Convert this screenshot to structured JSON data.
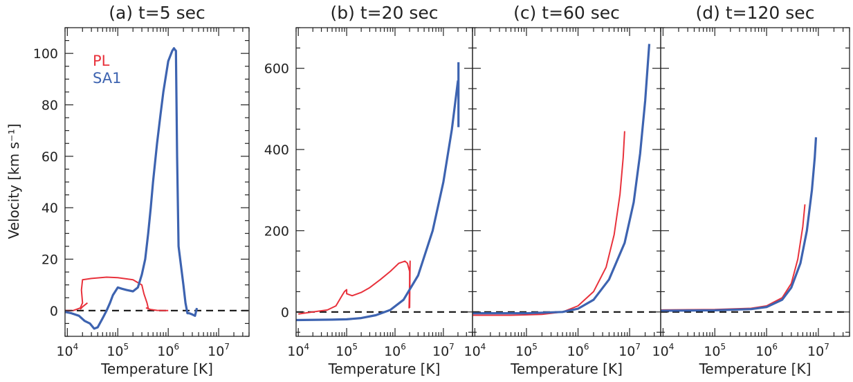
{
  "figure": {
    "ylabel": "Velocity [km s⁻¹]",
    "colors": {
      "PL": "#e8313b",
      "SA1": "#3d63b0",
      "zero_line": "#111111"
    }
  },
  "chart_data": [
    {
      "panel": "a",
      "type": "line",
      "title": "(a)  t=5 sec",
      "xlabel": "Temperature [K]",
      "ylabel": "Velocity [km s⁻¹]",
      "xscale": "log",
      "xlim": [
        9000,
        40000000
      ],
      "ylim": [
        -10,
        110
      ],
      "x_ticks": [
        10000,
        100000,
        1000000,
        10000000
      ],
      "x_tick_labels": [
        [
          "10",
          "4"
        ],
        [
          "10",
          "5"
        ],
        [
          "10",
          "6"
        ],
        [
          "10",
          "7"
        ]
      ],
      "y_ticks": [
        0,
        20,
        40,
        60,
        80,
        100
      ],
      "y_tick_labels": [
        "0",
        "20",
        "40",
        "60",
        "80",
        "100"
      ],
      "legend": {
        "position": "top-left",
        "entries": [
          "PL",
          "SA1"
        ]
      },
      "zero_line": true,
      "series": [
        {
          "name": "PL",
          "x": [
            9000,
            13000,
            18000,
            20000,
            19000,
            20000,
            30000,
            60000,
            100000,
            200000,
            300000,
            330000,
            380000,
            400000,
            370000,
            450000,
            600000,
            800000,
            1000000
          ],
          "y": [
            0,
            0,
            1,
            3,
            8,
            12,
            12.5,
            13,
            12.8,
            12,
            10,
            6.5,
            3,
            1,
            1,
            0.4,
            0.1,
            0,
            0
          ]
        },
        {
          "name": "PL",
          "x": [
            18000,
            20000,
            25000
          ],
          "y": [
            0.5,
            1.5,
            3
          ]
        },
        {
          "name": "SA1",
          "x": [
            9000,
            12000,
            17000,
            22000,
            28000,
            34000,
            40000,
            50000,
            60000,
            70000,
            80000,
            100000,
            120000,
            150000,
            200000,
            250000,
            300000,
            350000,
            400000,
            450000,
            500000,
            600000,
            700000,
            800000,
            1000000,
            1200000,
            1300000,
            1350000,
            1420000,
            1500000,
            1600000,
            2000000,
            2200000,
            2400000,
            2600000,
            3000000,
            3400000,
            3700000
          ],
          "y": [
            -0.5,
            -1,
            -2,
            -4,
            -5,
            -7,
            -6.5,
            -3,
            0,
            3,
            6,
            9,
            8.5,
            8,
            7.5,
            9,
            14,
            20,
            30,
            40,
            50,
            65,
            76,
            85,
            97,
            101,
            102,
            101.5,
            101,
            60,
            25,
            10,
            3,
            -1,
            -1,
            -1.5,
            -2,
            1
          ]
        }
      ]
    },
    {
      "panel": "b",
      "type": "line",
      "title": "(b)  t=20 sec",
      "xlabel": "Temperature [K]",
      "xscale": "log",
      "xlim": [
        9000,
        40000000
      ],
      "ylim": [
        -60,
        700
      ],
      "x_ticks": [
        10000,
        100000,
        1000000,
        10000000
      ],
      "x_tick_labels": [
        [
          "10",
          "4"
        ],
        [
          "10",
          "5"
        ],
        [
          "10",
          "6"
        ],
        [
          "10",
          "7"
        ]
      ],
      "y_ticks": [
        0,
        200,
        400,
        600
      ],
      "y_tick_labels": [
        "0",
        "200",
        "400",
        "600"
      ],
      "zero_line": true,
      "series": [
        {
          "name": "PL",
          "x": [
            10000,
            20000,
            40000,
            60000,
            80000,
            90000,
            100000,
            100000,
            130000,
            200000,
            300000,
            500000,
            800000,
            1200000,
            1600000,
            1800000,
            2000000,
            2000000,
            1950000,
            2050000,
            2000000
          ],
          "y": [
            -5,
            0,
            5,
            15,
            40,
            50,
            55,
            45,
            40,
            48,
            60,
            80,
            100,
            120,
            125,
            120,
            100,
            60,
            10,
            125,
            10
          ]
        },
        {
          "name": "SA1",
          "x": [
            9000,
            50000,
            100000,
            200000,
            400000,
            800000,
            1500000,
            3000000,
            6000000,
            10000000,
            15000000,
            20000000
          ],
          "y": [
            -20,
            -19,
            -18,
            -15,
            -8,
            5,
            30,
            90,
            200,
            320,
            450,
            570
          ]
        },
        {
          "name": "SA1",
          "x": [
            20500000,
            20500000
          ],
          "y": [
            455,
            615
          ]
        }
      ]
    },
    {
      "panel": "c",
      "type": "line",
      "title": "(c)  t=60 sec",
      "xlabel": "Temperature [K]",
      "xscale": "log",
      "xlim": [
        9000,
        40000000
      ],
      "ylim": [
        -60,
        700
      ],
      "x_ticks": [
        10000,
        100000,
        1000000,
        10000000
      ],
      "x_tick_labels": [
        [
          "10",
          "4"
        ],
        [
          "10",
          "5"
        ],
        [
          "10",
          "6"
        ],
        [
          "10",
          "7"
        ]
      ],
      "y_ticks": [],
      "y_tick_labels": [],
      "zero_line": true,
      "series": [
        {
          "name": "PL",
          "x": [
            9000,
            50000,
            200000,
            500000,
            1000000,
            2000000,
            3500000,
            5000000,
            6500000,
            7500000,
            8000000
          ],
          "y": [
            -8,
            -8,
            -6,
            0,
            15,
            50,
            110,
            190,
            290,
            380,
            445
          ]
        },
        {
          "name": "SA1",
          "x": [
            9000,
            100000,
            500000,
            1000000,
            2000000,
            4000000,
            8000000,
            12000000,
            16000000,
            20000000,
            24000000
          ],
          "y": [
            -3,
            -3,
            0,
            8,
            30,
            80,
            170,
            270,
            390,
            520,
            660
          ]
        }
      ]
    },
    {
      "panel": "d",
      "type": "line",
      "title": "(d)  t=120 sec",
      "xlabel": "Temperature [K]",
      "xscale": "log",
      "xlim": [
        9000,
        40000000
      ],
      "ylim": [
        -60,
        700
      ],
      "x_ticks": [
        10000,
        100000,
        1000000,
        10000000
      ],
      "x_tick_labels": [
        [
          "10",
          "4"
        ],
        [
          "10",
          "5"
        ],
        [
          "10",
          "6"
        ],
        [
          "10",
          "7"
        ]
      ],
      "y_ticks": [],
      "y_tick_labels": [],
      "zero_line": true,
      "series": [
        {
          "name": "PL",
          "x": [
            9000,
            100000,
            500000,
            1000000,
            2000000,
            3000000,
            4000000,
            5000000,
            5500000
          ],
          "y": [
            5,
            6,
            9,
            15,
            35,
            70,
            130,
            210,
            265
          ]
        },
        {
          "name": "SA1",
          "x": [
            9000,
            100000,
            500000,
            1000000,
            2000000,
            3000000,
            4500000,
            6000000,
            7500000,
            8500000,
            9000000
          ],
          "y": [
            3,
            4,
            7,
            12,
            30,
            60,
            120,
            200,
            300,
            380,
            430
          ]
        }
      ]
    }
  ]
}
